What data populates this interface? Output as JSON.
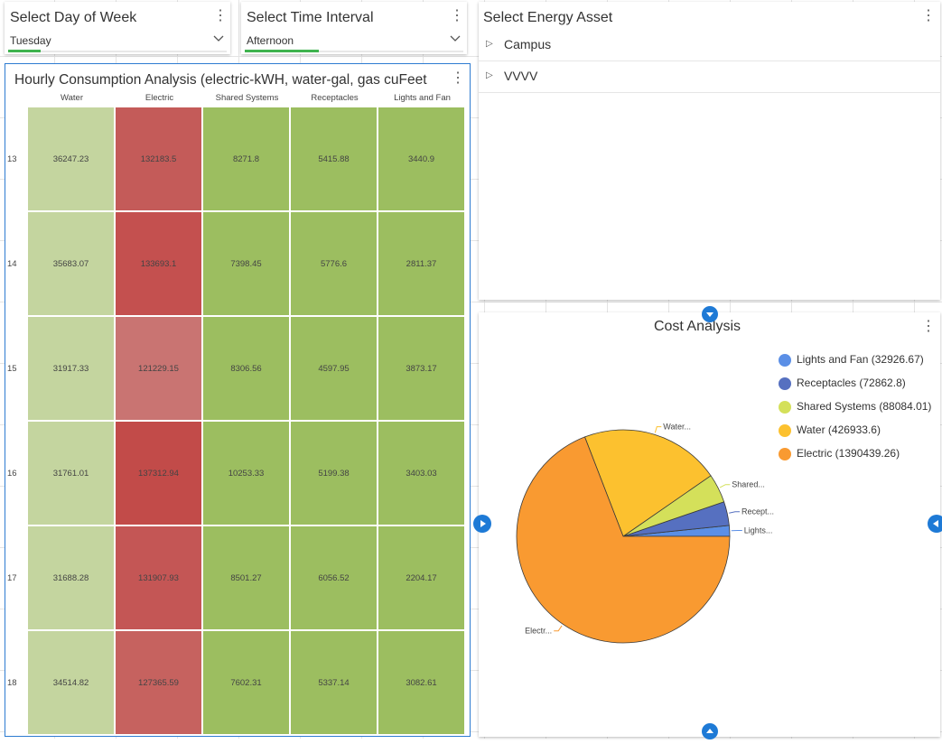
{
  "filters": {
    "day": {
      "title": "Select Day of Week",
      "value": "Tuesday"
    },
    "time": {
      "title": "Select Time Interval",
      "value": "Afternoon"
    }
  },
  "heatmap": {
    "title": "Hourly Consumption Analysis (electric-kWH, water-gal, gas cuFeet",
    "columns": [
      "Water",
      "Electric",
      "Shared Systems",
      "Receptacles",
      "Lights and Fan"
    ],
    "rows": [
      {
        "hour": "13",
        "values": [
          "36247.23",
          "132183.5",
          "8271.8",
          "5415.88",
          "3440.9"
        ]
      },
      {
        "hour": "14",
        "values": [
          "35683.07",
          "133693.1",
          "7398.45",
          "5776.6",
          "2811.37"
        ]
      },
      {
        "hour": "15",
        "values": [
          "31917.33",
          "121229.15",
          "8306.56",
          "4597.95",
          "3873.17"
        ]
      },
      {
        "hour": "16",
        "values": [
          "31761.01",
          "137312.94",
          "10253.33",
          "5199.38",
          "3403.03"
        ]
      },
      {
        "hour": "17",
        "values": [
          "31688.28",
          "131907.93",
          "8501.27",
          "6056.52",
          "2204.17"
        ]
      },
      {
        "hour": "18",
        "values": [
          "34514.82",
          "127365.59",
          "7602.31",
          "5337.14",
          "3082.61"
        ]
      }
    ],
    "colors": {
      "water": "#c4d59f",
      "green": "#9cbe60",
      "red_scale": [
        "#c45b59",
        "#c4504f",
        "#c97472",
        "#c24b49",
        "#c45655",
        "#c6625f"
      ]
    }
  },
  "asset": {
    "title": "Select Energy Asset",
    "items": [
      "Campus",
      "VVVV"
    ]
  },
  "cost": {
    "title": "Cost Analysis",
    "legend": [
      {
        "label": "Lights and Fan (32926.67)",
        "color": "#5b8fe6"
      },
      {
        "label": "Receptacles (72862.8)",
        "color": "#5670c0"
      },
      {
        "label": "Shared Systems (88084.01)",
        "color": "#d4e05a"
      },
      {
        "label": "Water (426933.6)",
        "color": "#fcc12f"
      },
      {
        "label": "Electric (1390439.26)",
        "color": "#f99a31"
      }
    ],
    "slice_labels": [
      "Lights...",
      "Recept...",
      "Shared...",
      "Water...",
      "Electr..."
    ]
  },
  "chart_data": {
    "type": "pie",
    "title": "Cost Analysis",
    "categories": [
      "Lights and Fan",
      "Receptacles",
      "Shared Systems",
      "Water",
      "Electric"
    ],
    "values": [
      32926.67,
      72862.8,
      88084.01,
      426933.6,
      1390439.26
    ],
    "colors": [
      "#5b8fe6",
      "#5670c0",
      "#d4e05a",
      "#fcc12f",
      "#f99a31"
    ],
    "legend": "top-right"
  },
  "icons": {
    "kebab": "⋮",
    "tree_expand": "▷"
  }
}
